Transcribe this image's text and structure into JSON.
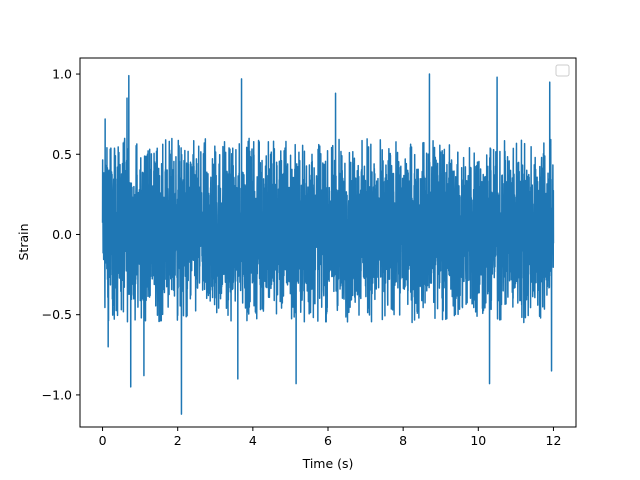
{
  "chart_data": {
    "type": "line",
    "title": "",
    "xlabel": "Time (s)",
    "ylabel": "Strain",
    "xlim": [
      -0.6,
      12.6
    ],
    "ylim": [
      -1.2,
      1.1
    ],
    "xticks": [
      0,
      2,
      4,
      6,
      8,
      10,
      12
    ],
    "xtick_labels": [
      "0",
      "2",
      "4",
      "6",
      "8",
      "10",
      "12"
    ],
    "yticks": [
      -1.0,
      -0.5,
      0.0,
      0.5,
      1.0
    ],
    "ytick_labels": [
      "−1.0",
      "−0.5",
      "0.0",
      "0.5",
      "1.0"
    ],
    "grid": false,
    "legend": {
      "placement": "upper right",
      "entries": []
    },
    "series": [
      {
        "color": "#1f77b4",
        "x_range": [
          0.0,
          12.0
        ],
        "typical_range": [
          -0.55,
          0.6
        ],
        "extremes": [
          {
            "x": 0.07,
            "y": 0.72
          },
          {
            "x": 0.15,
            "y": -0.7
          },
          {
            "x": 0.65,
            "y": 0.85
          },
          {
            "x": 0.7,
            "y": 0.99
          },
          {
            "x": 0.75,
            "y": -0.95
          },
          {
            "x": 1.1,
            "y": -0.88
          },
          {
            "x": 2.1,
            "y": -1.12
          },
          {
            "x": 3.7,
            "y": 0.97
          },
          {
            "x": 3.6,
            "y": -0.9
          },
          {
            "x": 5.15,
            "y": -0.93
          },
          {
            "x": 6.2,
            "y": 0.88
          },
          {
            "x": 8.7,
            "y": 1.0
          },
          {
            "x": 10.3,
            "y": -0.93
          },
          {
            "x": 10.5,
            "y": 0.98
          },
          {
            "x": 11.9,
            "y": 0.95
          },
          {
            "x": 11.95,
            "y": -0.85
          }
        ]
      }
    ]
  }
}
